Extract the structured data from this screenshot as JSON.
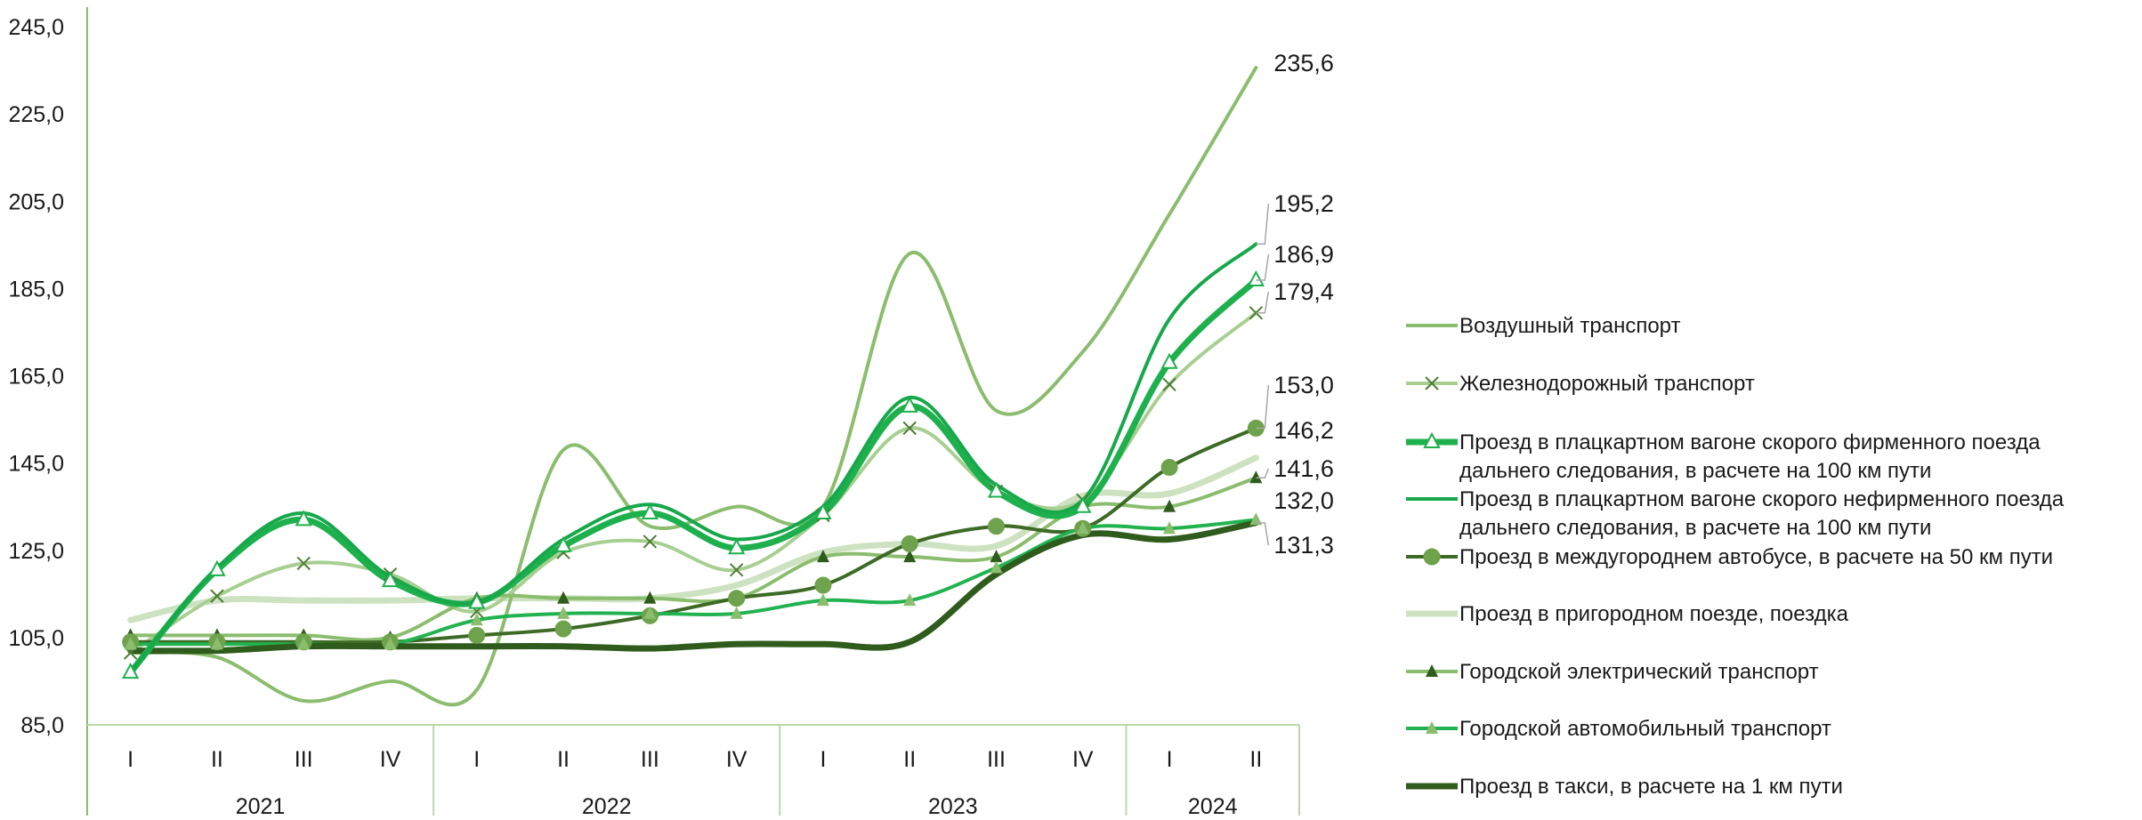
{
  "chart_data": {
    "type": "line",
    "title": "",
    "xlabel": "",
    "ylabel": "",
    "ylim": [
      85,
      245
    ],
    "yticks": [
      "85,0",
      "105,0",
      "125,0",
      "145,0",
      "165,0",
      "185,0",
      "205,0",
      "225,0",
      "245,0"
    ],
    "quarters": [
      "I",
      "II",
      "III",
      "IV",
      "I",
      "II",
      "III",
      "IV",
      "I",
      "II",
      "III",
      "IV",
      "I",
      "II"
    ],
    "years": [
      "2021",
      "2022",
      "2023",
      "2024"
    ],
    "series": [
      {
        "name": "Воздушный транспорт",
        "values": [
          101.5,
          100.5,
          90.5,
          95.0,
          93.0,
          148.0,
          130.5,
          135.0,
          135.0,
          193.0,
          157.0,
          170.5,
          202.0,
          235.6
        ],
        "color": "#8bbd6e",
        "width": 4,
        "marker": "none",
        "end_label": "235,6"
      },
      {
        "name": "Железнодорожный транспорт",
        "values": [
          101.5,
          114.5,
          122.0,
          119.5,
          111.0,
          124.5,
          127.0,
          120.5,
          133.0,
          153.0,
          138.5,
          136.5,
          163.0,
          179.4
        ],
        "color": "#a7cf92",
        "width": 4,
        "marker": "x",
        "end_label": "179,4"
      },
      {
        "name": "Проезд в плацкартном вагоне скорого фирменного поезда дальнего следования, в расчете на 100 км пути",
        "values": [
          97.0,
          120.5,
          132.0,
          118.0,
          113.0,
          126.0,
          133.5,
          125.5,
          133.5,
          158.0,
          138.5,
          135.0,
          168.0,
          186.9
        ],
        "color": "#1fb04e",
        "width": 7,
        "marker": "triangle-open",
        "end_label": "186,9"
      },
      {
        "name": "Проезд в плацкартном вагоне скорого нефирменного поезда дальнего следования, в расчете на 100 км пути",
        "values": [
          97.0,
          121.0,
          133.5,
          119.0,
          113.0,
          127.5,
          135.5,
          127.5,
          135.0,
          160.0,
          140.0,
          136.5,
          178.0,
          195.2
        ],
        "color": "#16a84a",
        "width": 4,
        "marker": "none",
        "end_label": "195,2"
      },
      {
        "name": "Проезд в междугороднем автобусе, в расчете на 50 км пути",
        "values": [
          104.0,
          104.0,
          104.0,
          104.0,
          105.5,
          107.0,
          110.0,
          114.0,
          117.0,
          126.5,
          130.5,
          130.0,
          144.0,
          153.0
        ],
        "color": "#3d6b26",
        "width": 4,
        "marker": "circle",
        "end_label": "153,0"
      },
      {
        "name": "Проезд в пригородном поезде, поездка",
        "values": [
          109.0,
          113.5,
          113.5,
          113.5,
          114.0,
          114.0,
          114.0,
          117.0,
          124.5,
          126.5,
          126.0,
          137.5,
          138.0,
          146.2
        ],
        "color": "#cde2c0",
        "width": 7,
        "marker": "none",
        "end_label": "146,2"
      },
      {
        "name": "Городской электрический транспорт",
        "values": [
          105.5,
          105.5,
          105.5,
          105.0,
          114.0,
          114.0,
          114.0,
          114.0,
          123.5,
          123.5,
          123.5,
          135.0,
          135.0,
          141.6
        ],
        "color": "#8bbd6e",
        "width": 4,
        "marker": "triangle-filled-dark",
        "end_label": "141,6"
      },
      {
        "name": "Городской автомобильный  транспорт",
        "values": [
          103.5,
          103.5,
          103.5,
          103.5,
          109.0,
          110.5,
          110.5,
          110.5,
          113.5,
          113.5,
          121.0,
          130.0,
          130.0,
          132.0
        ],
        "color": "#22b350",
        "width": 4,
        "marker": "triangle-filled-light",
        "end_label": "132,0"
      },
      {
        "name": "Проезд в такси, в расчете на 1 км пути",
        "values": [
          102.0,
          102.0,
          103.0,
          103.0,
          103.0,
          103.0,
          102.5,
          103.5,
          103.5,
          104.0,
          119.5,
          128.5,
          127.5,
          131.3
        ],
        "color": "#2f5b1c",
        "width": 7,
        "marker": "none",
        "end_label": "131,3"
      }
    ]
  }
}
